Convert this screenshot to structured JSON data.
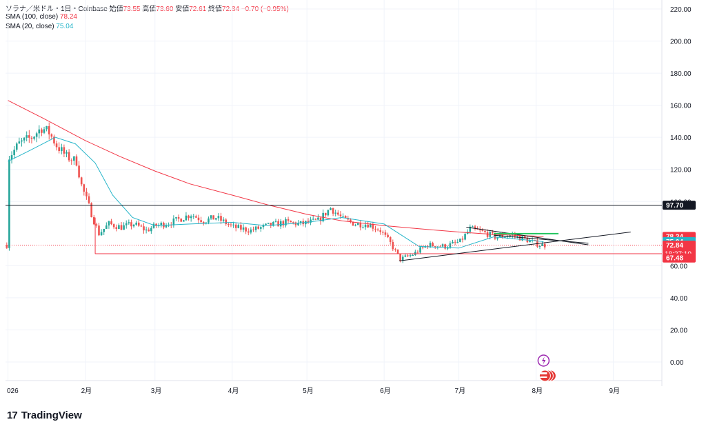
{
  "header": {
    "symbol": "ソラナ／米ドル・1日・Coinbase",
    "open_label": "始値",
    "open": "73.55",
    "high_label": "高値",
    "high": "73.60",
    "low_label": "安値",
    "low": "72.61",
    "close_label": "終値",
    "close": "72.84",
    "change": "−0.70 (−0.95%)",
    "sma100_label": "SMA (100, close)",
    "sma100_value": "78.24",
    "sma20_label": "SMA (20, close)",
    "sma20_value": "75.04"
  },
  "brand": {
    "logo_mark": "17",
    "name": "TradingView"
  },
  "colors": {
    "up": "#26a69a",
    "down": "#ef5350",
    "sma100": "#f23645",
    "sma20": "#26b5c9",
    "hline": "#131722",
    "support": "#f23645",
    "tl_green": "#22c55e"
  },
  "chart_data": {
    "type": "candlestick",
    "title": "ソラナ／米ドル・1日・Coinbase",
    "ylim": [
      -8,
      224
    ],
    "y_ticks": [
      "220.00",
      "200.00",
      "180.00",
      "160.00",
      "140.00",
      "120.00",
      "100.00",
      "60.00",
      "40.00",
      "20.00",
      "0.00"
    ],
    "x_ticks": [
      {
        "label": "026",
        "date": "2026-01-01"
      },
      {
        "label": "2月",
        "date": "2026-02-01"
      },
      {
        "label": "3月",
        "date": "2026-03-01"
      },
      {
        "label": "4月",
        "date": "2026-04-01"
      },
      {
        "label": "5月",
        "date": "2026-05-01"
      },
      {
        "label": "6月",
        "date": "2026-06-01"
      },
      {
        "label": "7月",
        "date": "2026-07-01"
      },
      {
        "label": "8月",
        "date": "2026-08-01"
      },
      {
        "label": "9月",
        "date": "2026-09-01"
      }
    ],
    "price_path": [
      [
        "2026-01-01",
        128
      ],
      [
        "2026-01-05",
        136
      ],
      [
        "2026-01-10",
        140
      ],
      [
        "2026-01-14",
        146
      ],
      [
        "2026-01-17",
        143
      ],
      [
        "2026-01-20",
        135
      ],
      [
        "2026-01-24",
        128
      ],
      [
        "2026-01-28",
        125
      ],
      [
        "2026-01-30",
        110
      ],
      [
        "2026-02-02",
        97
      ],
      [
        "2026-02-04",
        88
      ],
      [
        "2026-02-06",
        80
      ],
      [
        "2026-02-10",
        86
      ],
      [
        "2026-02-15",
        84
      ],
      [
        "2026-02-20",
        86
      ],
      [
        "2026-02-25",
        82
      ],
      [
        "2026-03-01",
        85
      ],
      [
        "2026-03-07",
        87
      ],
      [
        "2026-03-15",
        92
      ],
      [
        "2026-03-20",
        88
      ],
      [
        "2026-03-25",
        90
      ],
      [
        "2026-04-01",
        84
      ],
      [
        "2026-04-08",
        82
      ],
      [
        "2026-04-15",
        85
      ],
      [
        "2026-04-22",
        87
      ],
      [
        "2026-04-28",
        86
      ],
      [
        "2026-05-05",
        88
      ],
      [
        "2026-05-10",
        96
      ],
      [
        "2026-05-15",
        89
      ],
      [
        "2026-05-20",
        86
      ],
      [
        "2026-05-25",
        86
      ],
      [
        "2026-05-30",
        82
      ],
      [
        "2026-06-03",
        74
      ],
      [
        "2026-06-07",
        64
      ],
      [
        "2026-06-12",
        67
      ],
      [
        "2026-06-18",
        73
      ],
      [
        "2026-06-25",
        72
      ],
      [
        "2026-07-01",
        75
      ],
      [
        "2026-07-05",
        83
      ],
      [
        "2026-07-10",
        81
      ],
      [
        "2026-07-15",
        78
      ],
      [
        "2026-07-22",
        79
      ],
      [
        "2026-07-28",
        76
      ],
      [
        "2026-08-02",
        73
      ],
      [
        "2026-08-04",
        72.84
      ]
    ],
    "series": [
      {
        "name": "SMA (100, close)",
        "points": [
          [
            "2026-01-01",
            163
          ],
          [
            "2026-01-15",
            152
          ],
          [
            "2026-02-01",
            138
          ],
          [
            "2026-02-15",
            128
          ],
          [
            "2026-03-01",
            119
          ],
          [
            "2026-03-15",
            111
          ],
          [
            "2026-04-01",
            104
          ],
          [
            "2026-04-15",
            98
          ],
          [
            "2026-05-01",
            92
          ],
          [
            "2026-05-15",
            88
          ],
          [
            "2026-06-01",
            85
          ],
          [
            "2026-06-15",
            83
          ],
          [
            "2026-07-01",
            81
          ],
          [
            "2026-07-15",
            79.5
          ],
          [
            "2026-08-04",
            78.24
          ]
        ]
      },
      {
        "name": "SMA (20, close)",
        "points": [
          [
            "2026-01-01",
            125
          ],
          [
            "2026-01-10",
            132
          ],
          [
            "2026-01-20",
            140
          ],
          [
            "2026-01-28",
            136
          ],
          [
            "2026-02-05",
            124
          ],
          [
            "2026-02-12",
            104
          ],
          [
            "2026-02-20",
            90
          ],
          [
            "2026-03-01",
            85
          ],
          [
            "2026-03-15",
            86
          ],
          [
            "2026-04-01",
            87
          ],
          [
            "2026-04-15",
            85
          ],
          [
            "2026-05-01",
            87
          ],
          [
            "2026-05-15",
            90
          ],
          [
            "2026-06-01",
            86
          ],
          [
            "2026-06-15",
            72
          ],
          [
            "2026-07-01",
            71
          ],
          [
            "2026-07-15",
            78
          ],
          [
            "2026-08-04",
            75.04
          ]
        ]
      }
    ],
    "horizontal_lines": [
      {
        "value": 97.7,
        "label": "97.70",
        "color": "#131722"
      },
      {
        "value": 67.48,
        "label": "67.48",
        "color": "#f23645",
        "from": "2026-02-05"
      }
    ],
    "trendlines": [
      {
        "from": [
          "2026-06-07",
          63
        ],
        "to": [
          "2026-09-08",
          81
        ],
        "color": "#131722"
      },
      {
        "from": [
          "2026-07-04",
          84
        ],
        "to": [
          "2026-08-22",
          73
        ],
        "color": "#131722"
      },
      {
        "from": [
          "2026-07-15",
          79
        ],
        "to": [
          "2026-08-22",
          74
        ],
        "color": "#131722"
      },
      {
        "from": [
          "2026-07-15",
          80
        ],
        "to": [
          "2026-08-10",
          80
        ],
        "color": "#22c55e"
      }
    ],
    "price_labels": [
      {
        "text": "78.24",
        "value": 78.24,
        "color": "#f23645"
      },
      {
        "text": "75.04",
        "value": 75.04,
        "color": "#26b5c9"
      },
      {
        "text": "72.84",
        "value": 72.84,
        "color": "#f23645",
        "sub": "18:27:10"
      },
      {
        "text": "67.48",
        "value": 67.48,
        "color": "#f23645"
      }
    ],
    "last_date": "2026-08-04"
  }
}
